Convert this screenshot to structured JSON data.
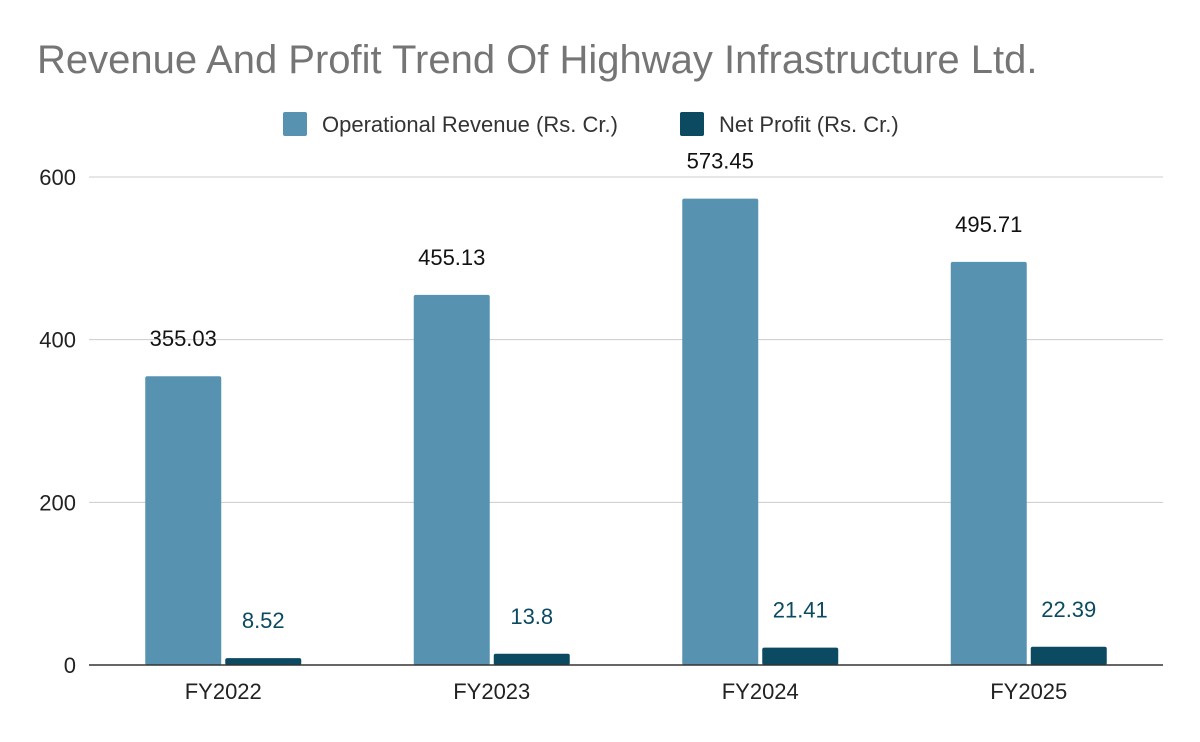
{
  "chart_data": {
    "type": "bar",
    "title": "Revenue And Profit Trend Of Highway Infrastructure Ltd.",
    "xlabel": "",
    "ylabel": "",
    "ylim": [
      0,
      600
    ],
    "yticks": [
      0,
      200,
      400,
      600
    ],
    "grid": true,
    "legend_position": "top-center",
    "categories": [
      "FY2022",
      "FY2023",
      "FY2024",
      "FY2025"
    ],
    "series": [
      {
        "name": "Operational Revenue (Rs. Cr.)",
        "color": "#5793b0",
        "values": [
          355.03,
          455.13,
          573.45,
          495.71
        ],
        "labels": [
          "355.03",
          "455.13",
          "573.45",
          "495.71"
        ]
      },
      {
        "name": "Net Profit (Rs. Cr.)",
        "color": "#0b4a61",
        "values": [
          8.52,
          13.8,
          21.41,
          22.39
        ],
        "labels": [
          "8.52",
          "13.8",
          "21.41",
          "22.39"
        ]
      }
    ]
  }
}
